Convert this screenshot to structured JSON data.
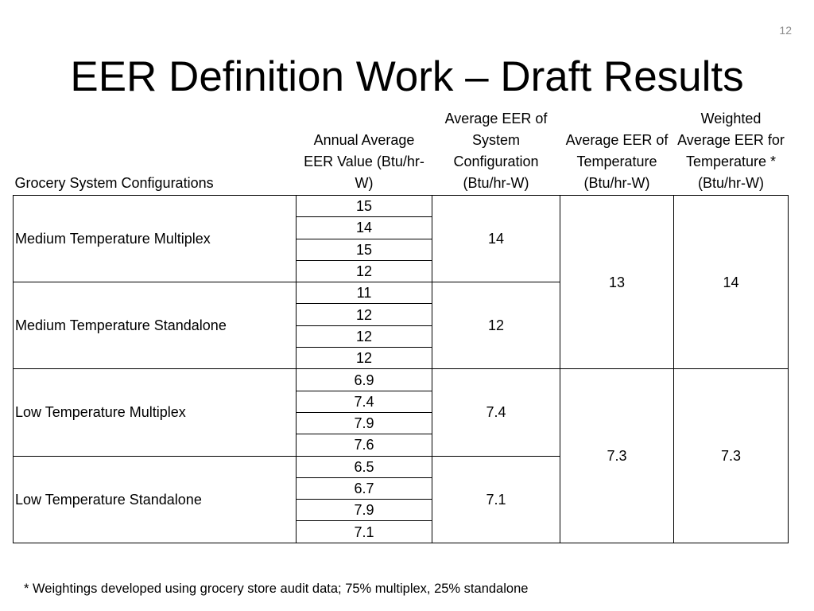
{
  "slide_number": "12",
  "title": "EER Definition Work – Draft Results",
  "table": {
    "headers": {
      "config": "Grocery System Configurations",
      "annual": "Annual Average EER Value (Btu/hr-W)",
      "avg_system": "Average EER of System Configuration (Btu/hr-W)",
      "avg_temp": "Average EER of Temperature (Btu/hr-W)",
      "weighted": "Weighted Average EER for Temperature * (Btu/hr-W)"
    },
    "groups": [
      {
        "name": "Medium Temperature Multiplex",
        "values": [
          "15",
          "14",
          "15",
          "12"
        ],
        "system_avg": "14"
      },
      {
        "name": "Medium Temperature Standalone",
        "values": [
          "11",
          "12",
          "12",
          "12"
        ],
        "system_avg": "12"
      },
      {
        "name": "Low Temperature Multiplex",
        "values": [
          "6.9",
          "7.4",
          "7.9",
          "7.6"
        ],
        "system_avg": "7.4"
      },
      {
        "name": "Low Temperature Standalone",
        "values": [
          "6.5",
          "6.7",
          "7.9",
          "7.1"
        ],
        "system_avg": "7.1"
      }
    ],
    "temperatures": [
      {
        "avg": "13",
        "weighted": "14"
      },
      {
        "avg": "7.3",
        "weighted": "7.3"
      }
    ]
  },
  "footnote": "* Weightings developed using grocery store audit data; 75% multiplex, 25% standalone"
}
